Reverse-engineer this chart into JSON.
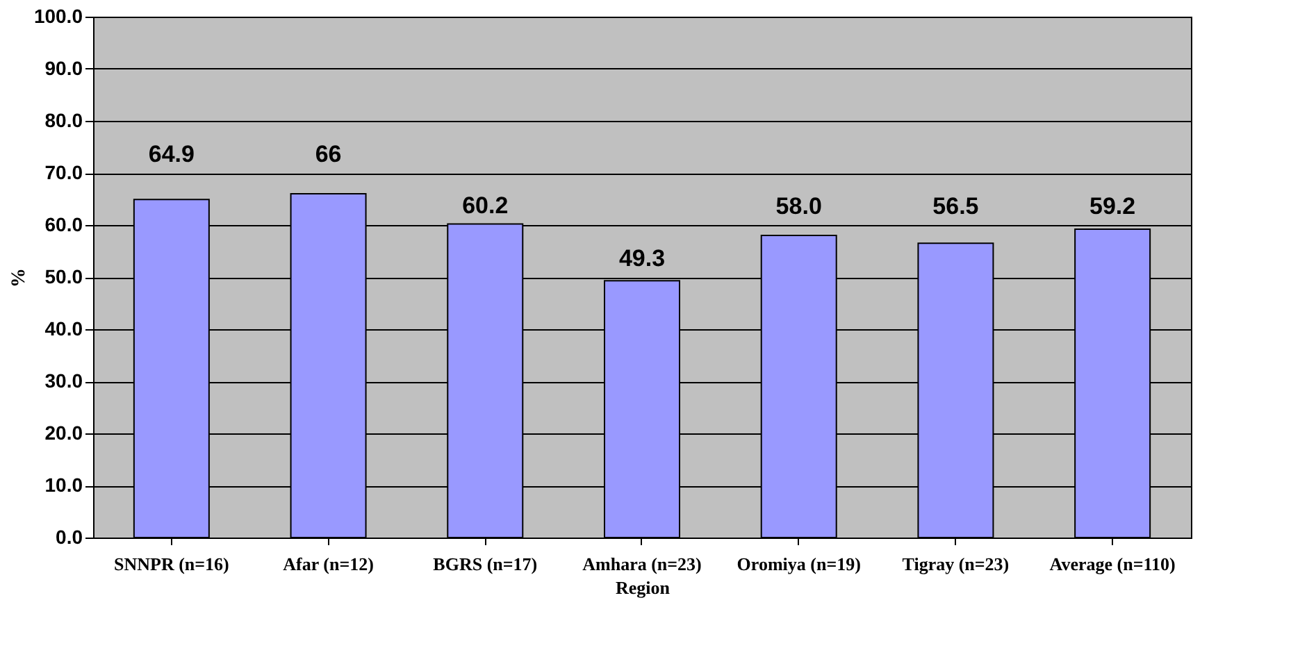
{
  "chart_data": {
    "type": "bar",
    "xlabel": "Region",
    "ylabel": "%",
    "categories": [
      "SNNPR (n=16)",
      "Afar (n=12)",
      "BGRS (n=17)",
      "Amhara (n=23)",
      "Oromiya (n=19)",
      "Tigray (n=23)",
      "Average (n=110)"
    ],
    "values": [
      64.9,
      66,
      60.2,
      49.3,
      58.0,
      56.5,
      59.2
    ],
    "value_labels": [
      "64.9",
      "66",
      "60.2",
      "49.3",
      "58.0",
      "56.5",
      "59.2"
    ],
    "color": "#9999ff",
    "ylim": [
      0,
      100
    ],
    "yticks": [
      {
        "value": 0,
        "label": "0.0"
      },
      {
        "value": 10,
        "label": "10.0"
      },
      {
        "value": 20,
        "label": "20.0"
      },
      {
        "value": 30,
        "label": "30.0"
      },
      {
        "value": 40,
        "label": "40.0"
      },
      {
        "value": 50,
        "label": "50.0"
      },
      {
        "value": 60,
        "label": "60.0"
      },
      {
        "value": 70,
        "label": "70.0"
      },
      {
        "value": 80,
        "label": "80.0"
      },
      {
        "value": 90,
        "label": "90.0"
      },
      {
        "value": 100,
        "label": "100.0"
      }
    ],
    "grid": "y"
  }
}
